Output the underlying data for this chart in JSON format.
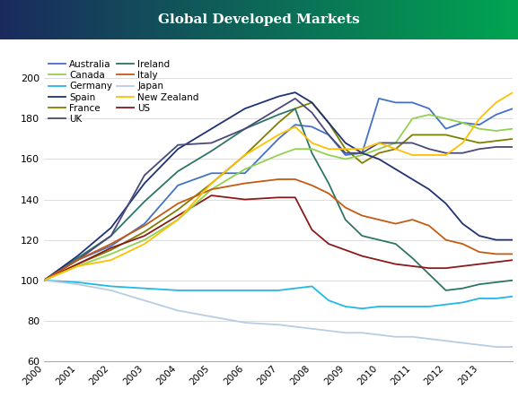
{
  "title": "Global Developed Markets",
  "title_color": "#ffffff",
  "bg_color": "#ffffff",
  "ylim": [
    60,
    210
  ],
  "yticks": [
    60,
    80,
    100,
    120,
    140,
    160,
    180,
    200
  ],
  "years": [
    2000,
    2001,
    2002,
    2003,
    2004,
    2005,
    2006,
    2007,
    2007.5,
    2008,
    2008.5,
    2009,
    2009.5,
    2010,
    2010.5,
    2011,
    2011.5,
    2012,
    2012.5,
    2013,
    2013.5,
    2014
  ],
  "xtick_years": [
    2000,
    2001,
    2002,
    2003,
    2004,
    2005,
    2006,
    2007,
    2008,
    2009,
    2010,
    2011,
    2012,
    2013
  ],
  "series": {
    "Australia": {
      "color": "#4472c4",
      "data": [
        100,
        110,
        117,
        128,
        147,
        153,
        153,
        170,
        177,
        176,
        172,
        162,
        163,
        190,
        188,
        188,
        185,
        175,
        178,
        177,
        182,
        185
      ]
    },
    "Germany": {
      "color": "#23b7e5",
      "data": [
        100,
        99,
        97,
        96,
        95,
        95,
        95,
        95,
        96,
        97,
        90,
        87,
        86,
        87,
        87,
        87,
        87,
        88,
        89,
        91,
        91,
        92
      ]
    },
    "France": {
      "color": "#7f7f00",
      "data": [
        100,
        108,
        115,
        124,
        135,
        148,
        162,
        178,
        185,
        188,
        178,
        165,
        158,
        163,
        165,
        172,
        172,
        172,
        170,
        168,
        169,
        170
      ]
    },
    "Ireland": {
      "color": "#2e7566",
      "data": [
        100,
        111,
        122,
        139,
        154,
        164,
        175,
        182,
        185,
        163,
        148,
        130,
        122,
        120,
        118,
        111,
        103,
        95,
        96,
        98,
        99,
        100
      ]
    },
    "Japan": {
      "color": "#b8cce4",
      "data": [
        100,
        98,
        95,
        90,
        85,
        82,
        79,
        78,
        77,
        76,
        75,
        74,
        74,
        73,
        72,
        72,
        71,
        70,
        69,
        68,
        67,
        67
      ]
    },
    "US": {
      "color": "#8b1a1a",
      "data": [
        100,
        108,
        116,
        122,
        132,
        142,
        140,
        141,
        141,
        125,
        118,
        115,
        112,
        110,
        108,
        107,
        106,
        106,
        107,
        108,
        109,
        110
      ]
    },
    "Canada": {
      "color": "#92d050",
      "data": [
        100,
        107,
        113,
        120,
        130,
        145,
        155,
        162,
        165,
        165,
        162,
        160,
        162,
        165,
        168,
        180,
        182,
        180,
        178,
        175,
        174,
        175
      ]
    },
    "Spain": {
      "color": "#1f3374",
      "data": [
        100,
        112,
        126,
        148,
        165,
        175,
        185,
        191,
        193,
        188,
        178,
        168,
        163,
        160,
        155,
        150,
        145,
        138,
        128,
        122,
        120,
        120
      ]
    },
    "UK": {
      "color": "#4a4a7a",
      "data": [
        100,
        110,
        122,
        152,
        167,
        168,
        175,
        185,
        190,
        183,
        172,
        163,
        163,
        168,
        168,
        168,
        165,
        163,
        163,
        165,
        166,
        166
      ]
    },
    "Italy": {
      "color": "#c55a11",
      "data": [
        100,
        110,
        118,
        127,
        138,
        145,
        148,
        150,
        150,
        147,
        143,
        136,
        132,
        130,
        128,
        130,
        127,
        120,
        118,
        114,
        113,
        113
      ]
    },
    "New Zealand": {
      "color": "#ffc000",
      "data": [
        100,
        107,
        110,
        118,
        130,
        148,
        162,
        172,
        176,
        168,
        165,
        165,
        165,
        168,
        165,
        162,
        162,
        162,
        168,
        180,
        188,
        193
      ]
    }
  },
  "legend_order": [
    "Australia",
    "Canada",
    "Germany",
    "Spain",
    "France",
    "UK",
    "Ireland",
    "Italy",
    "Japan",
    "New Zealand",
    "US"
  ]
}
